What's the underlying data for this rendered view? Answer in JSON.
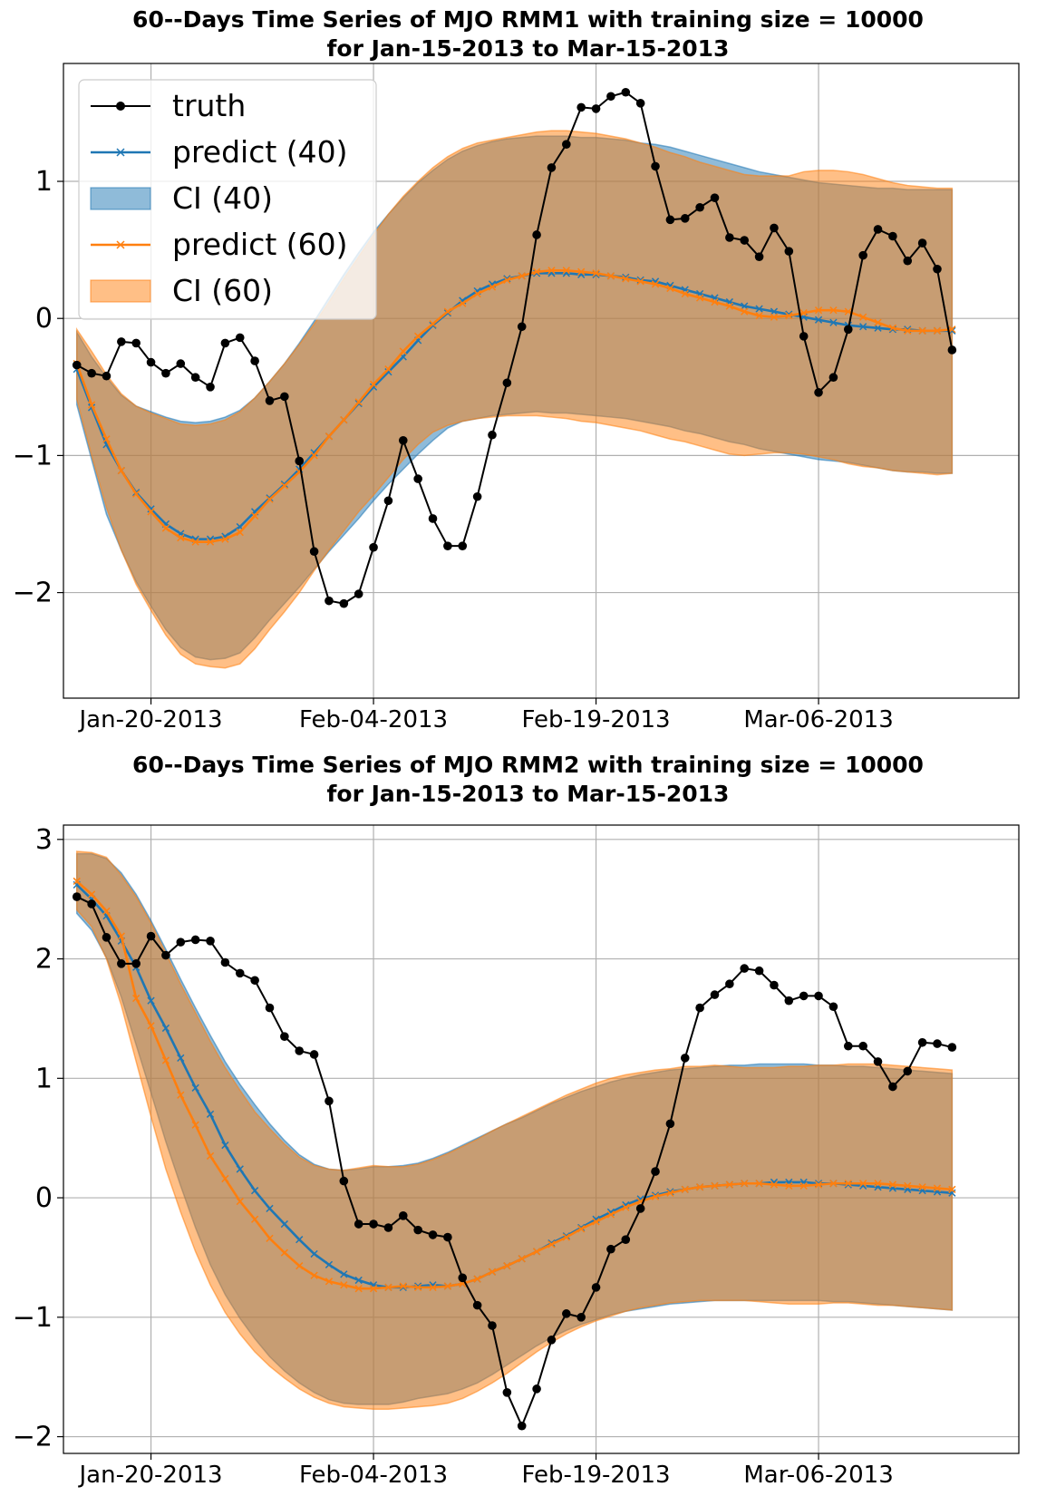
{
  "chart_data": [
    {
      "type": "line",
      "title_line1": "60--Days Time Series of MJO RMM1 with training size = 10000",
      "title_line2": "for Jan-15-2013 to Mar-15-2013",
      "xlabel": "",
      "ylabel": "",
      "x_start": "Jan-15-2013",
      "x_end": "Mar-15-2013",
      "x_tick_labels": [
        "Jan-20-2013",
        "Feb-04-2013",
        "Feb-19-2013",
        "Mar-06-2013"
      ],
      "y_ticks": [
        -2,
        -1,
        0,
        1
      ],
      "y_tick_labels": [
        "−2",
        "−1",
        "0",
        "1"
      ],
      "ylim": [
        -2.77,
        1.86
      ],
      "grid": true,
      "legend": {
        "placement": "top-left",
        "entries": [
          {
            "label": "truth",
            "series": "truth"
          },
          {
            "label": "predict (40)",
            "series": "predict40"
          },
          {
            "label": "CI (40)",
            "series": "ci40"
          },
          {
            "label": "predict (60)",
            "series": "predict60"
          },
          {
            "label": "CI (60)",
            "series": "ci60"
          }
        ]
      },
      "colors": {
        "truth": "#000000",
        "predict40": "#1f77b4",
        "predict60": "#ff7f0e",
        "ci40": "#1f77b4",
        "ci60": "#ff7f0e",
        "grid": "#b0b0b0"
      },
      "series": {
        "truth": [
          -0.34,
          -0.4,
          -0.42,
          -0.17,
          -0.18,
          -0.32,
          -0.4,
          -0.33,
          -0.43,
          -0.5,
          -0.18,
          -0.14,
          -0.31,
          -0.6,
          -0.57,
          -1.04,
          -1.7,
          -2.06,
          -2.08,
          -2.01,
          -1.67,
          -1.33,
          -0.89,
          -1.17,
          -1.46,
          -1.66,
          -1.66,
          -1.3,
          -0.85,
          -0.47,
          -0.06,
          0.61,
          1.1,
          1.27,
          1.54,
          1.53,
          1.62,
          1.65,
          1.57,
          1.11,
          0.72,
          0.73,
          0.81,
          0.88,
          0.59,
          0.57,
          0.45,
          0.66,
          0.49,
          -0.13,
          -0.54,
          -0.43,
          -0.08,
          0.46,
          0.65,
          0.6,
          0.42,
          0.55,
          0.36,
          -0.23
        ],
        "predict40": [
          -0.37,
          -0.65,
          -0.92,
          -1.11,
          -1.27,
          -1.39,
          -1.5,
          -1.57,
          -1.61,
          -1.61,
          -1.59,
          -1.52,
          -1.41,
          -1.31,
          -1.21,
          -1.1,
          -0.98,
          -0.86,
          -0.74,
          -0.62,
          -0.5,
          -0.39,
          -0.28,
          -0.16,
          -0.05,
          0.04,
          0.13,
          0.2,
          0.25,
          0.29,
          0.31,
          0.33,
          0.33,
          0.33,
          0.32,
          0.32,
          0.31,
          0.3,
          0.28,
          0.27,
          0.24,
          0.21,
          0.18,
          0.15,
          0.12,
          0.09,
          0.07,
          0.05,
          0.03,
          0.01,
          -0.01,
          -0.03,
          -0.05,
          -0.06,
          -0.07,
          -0.08,
          -0.08,
          -0.09,
          -0.09,
          -0.09
        ],
        "predict60": [
          -0.33,
          -0.63,
          -0.88,
          -1.11,
          -1.28,
          -1.41,
          -1.53,
          -1.6,
          -1.63,
          -1.63,
          -1.61,
          -1.56,
          -1.44,
          -1.32,
          -1.22,
          -1.12,
          -1.0,
          -0.86,
          -0.74,
          -0.61,
          -0.48,
          -0.37,
          -0.24,
          -0.13,
          -0.04,
          0.05,
          0.11,
          0.18,
          0.23,
          0.28,
          0.31,
          0.34,
          0.35,
          0.35,
          0.34,
          0.33,
          0.31,
          0.29,
          0.27,
          0.25,
          0.22,
          0.18,
          0.15,
          0.12,
          0.09,
          0.05,
          0.02,
          0.01,
          0.02,
          0.04,
          0.06,
          0.06,
          0.05,
          0.01,
          -0.03,
          -0.07,
          -0.09,
          -0.09,
          -0.09,
          -0.08
        ],
        "ci40_upper": [
          -0.1,
          -0.28,
          -0.43,
          -0.56,
          -0.64,
          -0.68,
          -0.72,
          -0.75,
          -0.76,
          -0.75,
          -0.72,
          -0.67,
          -0.58,
          -0.46,
          -0.33,
          -0.18,
          -0.02,
          0.15,
          0.32,
          0.48,
          0.63,
          0.76,
          0.88,
          0.99,
          1.08,
          1.16,
          1.22,
          1.26,
          1.29,
          1.31,
          1.32,
          1.33,
          1.33,
          1.33,
          1.32,
          1.32,
          1.31,
          1.3,
          1.28,
          1.27,
          1.25,
          1.22,
          1.19,
          1.16,
          1.13,
          1.1,
          1.07,
          1.05,
          1.03,
          1.01,
          0.99,
          0.98,
          0.97,
          0.96,
          0.95,
          0.95,
          0.94,
          0.94,
          0.94,
          0.94
        ],
        "ci40_lower": [
          -0.63,
          -1.03,
          -1.43,
          -1.69,
          -1.92,
          -2.1,
          -2.27,
          -2.4,
          -2.47,
          -2.49,
          -2.48,
          -2.44,
          -2.33,
          -2.2,
          -2.08,
          -1.96,
          -1.83,
          -1.7,
          -1.58,
          -1.46,
          -1.33,
          -1.21,
          -1.1,
          -0.99,
          -0.89,
          -0.8,
          -0.75,
          -0.73,
          -0.71,
          -0.7,
          -0.69,
          -0.68,
          -0.69,
          -0.69,
          -0.7,
          -0.71,
          -0.72,
          -0.73,
          -0.75,
          -0.77,
          -0.79,
          -0.82,
          -0.84,
          -0.87,
          -0.9,
          -0.92,
          -0.95,
          -0.97,
          -0.99,
          -1.01,
          -1.03,
          -1.04,
          -1.05,
          -1.07,
          -1.09,
          -1.11,
          -1.12,
          -1.12,
          -1.13,
          -1.13
        ],
        "ci60_upper": [
          -0.08,
          -0.24,
          -0.41,
          -0.55,
          -0.64,
          -0.69,
          -0.73,
          -0.77,
          -0.78,
          -0.77,
          -0.74,
          -0.68,
          -0.58,
          -0.46,
          -0.33,
          -0.19,
          -0.04,
          0.12,
          0.29,
          0.45,
          0.61,
          0.76,
          0.89,
          1.0,
          1.1,
          1.18,
          1.24,
          1.28,
          1.3,
          1.32,
          1.34,
          1.36,
          1.37,
          1.37,
          1.36,
          1.35,
          1.33,
          1.31,
          1.28,
          1.25,
          1.21,
          1.18,
          1.14,
          1.11,
          1.08,
          1.05,
          1.04,
          1.04,
          1.04,
          1.07,
          1.08,
          1.08,
          1.07,
          1.05,
          1.02,
          0.99,
          0.97,
          0.96,
          0.95,
          0.95
        ],
        "ci60_lower": [
          -0.59,
          -1.0,
          -1.38,
          -1.69,
          -1.94,
          -2.13,
          -2.31,
          -2.45,
          -2.52,
          -2.54,
          -2.55,
          -2.52,
          -2.41,
          -2.27,
          -2.14,
          -2.0,
          -1.84,
          -1.69,
          -1.55,
          -1.41,
          -1.29,
          -1.16,
          -1.03,
          -0.92,
          -0.83,
          -0.78,
          -0.75,
          -0.73,
          -0.72,
          -0.71,
          -0.71,
          -0.71,
          -0.72,
          -0.73,
          -0.75,
          -0.76,
          -0.78,
          -0.8,
          -0.82,
          -0.85,
          -0.88,
          -0.9,
          -0.93,
          -0.96,
          -0.99,
          -1.0,
          -0.99,
          -0.98,
          -0.98,
          -0.99,
          -1.01,
          -1.03,
          -1.06,
          -1.08,
          -1.09,
          -1.11,
          -1.12,
          -1.13,
          -1.14,
          -1.13
        ]
      }
    },
    {
      "type": "line",
      "title_line1": "60--Days Time Series of MJO RMM2 with training size = 10000",
      "title_line2": "for Jan-15-2013 to Mar-15-2013",
      "xlabel": "",
      "ylabel": "",
      "x_start": "Jan-15-2013",
      "x_end": "Mar-15-2013",
      "x_tick_labels": [
        "Jan-20-2013",
        "Feb-04-2013",
        "Feb-19-2013",
        "Mar-06-2013"
      ],
      "y_ticks": [
        -2,
        -1,
        0,
        1,
        2,
        3
      ],
      "y_tick_labels": [
        "−2",
        "−1",
        "0",
        "1",
        "2",
        "3"
      ],
      "ylim": [
        -2.14,
        3.12
      ],
      "grid": true,
      "colors": {
        "truth": "#000000",
        "predict40": "#1f77b4",
        "predict60": "#ff7f0e",
        "ci40": "#1f77b4",
        "ci60": "#ff7f0e",
        "grid": "#b0b0b0"
      },
      "series": {
        "truth": [
          2.52,
          2.46,
          2.18,
          1.96,
          1.96,
          2.19,
          2.03,
          2.14,
          2.16,
          2.15,
          1.97,
          1.88,
          1.82,
          1.59,
          1.35,
          1.23,
          1.2,
          0.81,
          0.14,
          -0.22,
          -0.22,
          -0.25,
          -0.15,
          -0.27,
          -0.31,
          -0.33,
          -0.67,
          -0.9,
          -1.07,
          -1.63,
          -1.91,
          -1.6,
          -1.19,
          -0.97,
          -1.0,
          -0.75,
          -0.43,
          -0.35,
          -0.09,
          0.22,
          0.62,
          1.17,
          1.59,
          1.7,
          1.79,
          1.92,
          1.9,
          1.78,
          1.65,
          1.69,
          1.69,
          1.6,
          1.27,
          1.27,
          1.14,
          0.93,
          1.06,
          1.3,
          1.29,
          1.26
        ],
        "predict40": [
          2.62,
          2.5,
          2.36,
          2.15,
          1.93,
          1.65,
          1.42,
          1.17,
          0.92,
          0.7,
          0.44,
          0.24,
          0.06,
          -0.09,
          -0.22,
          -0.35,
          -0.47,
          -0.56,
          -0.64,
          -0.69,
          -0.73,
          -0.75,
          -0.75,
          -0.74,
          -0.73,
          -0.74,
          -0.72,
          -0.68,
          -0.62,
          -0.57,
          -0.51,
          -0.45,
          -0.38,
          -0.32,
          -0.25,
          -0.18,
          -0.12,
          -0.06,
          -0.01,
          0.02,
          0.05,
          0.07,
          0.09,
          0.1,
          0.11,
          0.12,
          0.12,
          0.13,
          0.13,
          0.13,
          0.12,
          0.12,
          0.11,
          0.1,
          0.09,
          0.08,
          0.07,
          0.06,
          0.05,
          0.04
        ],
        "predict60": [
          2.65,
          2.54,
          2.4,
          2.19,
          1.67,
          1.44,
          1.15,
          0.86,
          0.61,
          0.35,
          0.16,
          -0.03,
          -0.18,
          -0.34,
          -0.46,
          -0.57,
          -0.65,
          -0.7,
          -0.73,
          -0.76,
          -0.76,
          -0.75,
          -0.74,
          -0.75,
          -0.75,
          -0.74,
          -0.72,
          -0.68,
          -0.62,
          -0.57,
          -0.51,
          -0.45,
          -0.39,
          -0.33,
          -0.26,
          -0.2,
          -0.14,
          -0.08,
          -0.03,
          0.01,
          0.04,
          0.07,
          0.09,
          0.1,
          0.11,
          0.12,
          0.12,
          0.11,
          0.1,
          0.1,
          0.11,
          0.12,
          0.12,
          0.12,
          0.12,
          0.11,
          0.1,
          0.09,
          0.08,
          0.07
        ],
        "ci40_upper": [
          2.88,
          2.88,
          2.84,
          2.72,
          2.54,
          2.32,
          2.08,
          1.83,
          1.59,
          1.36,
          1.14,
          0.95,
          0.78,
          0.62,
          0.48,
          0.36,
          0.28,
          0.24,
          0.23,
          0.24,
          0.26,
          0.26,
          0.27,
          0.29,
          0.33,
          0.38,
          0.44,
          0.5,
          0.56,
          0.62,
          0.67,
          0.73,
          0.79,
          0.84,
          0.89,
          0.93,
          0.97,
          1.0,
          1.03,
          1.05,
          1.07,
          1.08,
          1.09,
          1.1,
          1.11,
          1.11,
          1.12,
          1.12,
          1.12,
          1.12,
          1.11,
          1.11,
          1.1,
          1.1,
          1.09,
          1.08,
          1.07,
          1.06,
          1.05,
          1.04
        ],
        "ci40_lower": [
          2.38,
          2.24,
          2.01,
          1.68,
          1.28,
          0.88,
          0.47,
          0.1,
          -0.25,
          -0.56,
          -0.81,
          -1.01,
          -1.18,
          -1.33,
          -1.45,
          -1.55,
          -1.63,
          -1.69,
          -1.72,
          -1.73,
          -1.73,
          -1.73,
          -1.71,
          -1.68,
          -1.66,
          -1.64,
          -1.6,
          -1.55,
          -1.48,
          -1.4,
          -1.32,
          -1.24,
          -1.17,
          -1.11,
          -1.06,
          -1.02,
          -0.98,
          -0.95,
          -0.93,
          -0.91,
          -0.89,
          -0.88,
          -0.87,
          -0.86,
          -0.86,
          -0.86,
          -0.86,
          -0.86,
          -0.86,
          -0.86,
          -0.86,
          -0.87,
          -0.87,
          -0.88,
          -0.89,
          -0.9,
          -0.91,
          -0.92,
          -0.93,
          -0.94
        ],
        "ci60_upper": [
          2.9,
          2.89,
          2.85,
          2.7,
          2.52,
          2.3,
          2.05,
          1.79,
          1.55,
          1.31,
          1.09,
          0.9,
          0.72,
          0.58,
          0.45,
          0.34,
          0.27,
          0.24,
          0.23,
          0.25,
          0.27,
          0.26,
          0.26,
          0.28,
          0.32,
          0.37,
          0.43,
          0.49,
          0.56,
          0.62,
          0.68,
          0.74,
          0.8,
          0.86,
          0.91,
          0.96,
          1.0,
          1.03,
          1.05,
          1.07,
          1.08,
          1.1,
          1.1,
          1.11,
          1.1,
          1.09,
          1.09,
          1.09,
          1.1,
          1.1,
          1.11,
          1.11,
          1.12,
          1.12,
          1.12,
          1.11,
          1.1,
          1.09,
          1.08,
          1.07
        ],
        "ci60_lower": [
          2.41,
          2.27,
          2.0,
          1.61,
          1.14,
          0.68,
          0.24,
          -0.12,
          -0.45,
          -0.73,
          -0.96,
          -1.14,
          -1.29,
          -1.41,
          -1.51,
          -1.6,
          -1.67,
          -1.72,
          -1.75,
          -1.76,
          -1.77,
          -1.77,
          -1.76,
          -1.75,
          -1.74,
          -1.72,
          -1.68,
          -1.62,
          -1.55,
          -1.47,
          -1.38,
          -1.29,
          -1.21,
          -1.14,
          -1.08,
          -1.03,
          -0.99,
          -0.95,
          -0.92,
          -0.9,
          -0.88,
          -0.87,
          -0.86,
          -0.86,
          -0.86,
          -0.86,
          -0.87,
          -0.88,
          -0.89,
          -0.89,
          -0.89,
          -0.88,
          -0.88,
          -0.89,
          -0.9,
          -0.9,
          -0.91,
          -0.92,
          -0.93,
          -0.94
        ]
      }
    }
  ]
}
